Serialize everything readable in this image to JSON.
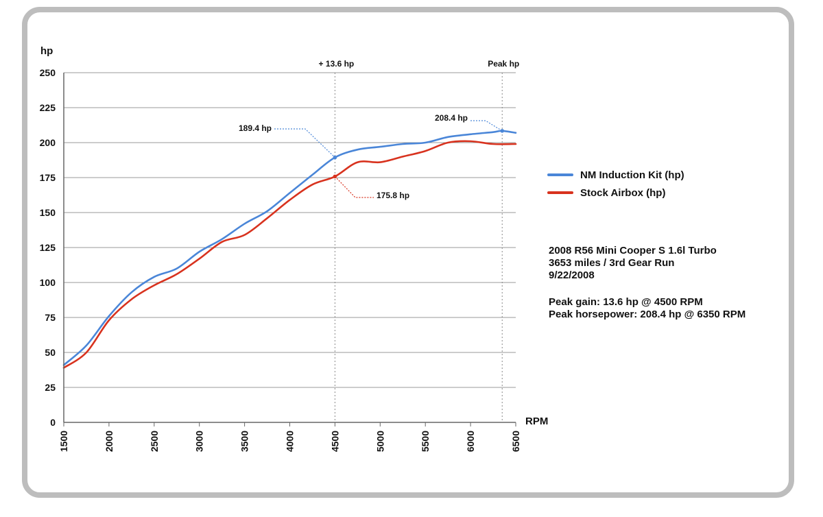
{
  "chart_data": {
    "type": "line",
    "ylabel": "hp",
    "xlabel": "RPM",
    "xlim": [
      1500,
      6500
    ],
    "ylim": [
      0,
      250
    ],
    "x_ticks": [
      1500,
      2000,
      2500,
      3000,
      3500,
      4000,
      4500,
      5000,
      5500,
      6000,
      6500
    ],
    "y_ticks": [
      0,
      25,
      50,
      75,
      100,
      125,
      150,
      175,
      200,
      225,
      250
    ],
    "grid": "horizontal",
    "legend_position": "right",
    "series": [
      {
        "name": "NM Induction Kit (hp)",
        "color": "#4a86d8",
        "x": [
          1500,
          1750,
          2000,
          2250,
          2500,
          2750,
          3000,
          3250,
          3500,
          3750,
          4000,
          4250,
          4500,
          4750,
          5000,
          5250,
          5500,
          5750,
          6000,
          6250,
          6350,
          6500
        ],
        "y": [
          41,
          55,
          76,
          93,
          104,
          110,
          122,
          131,
          142,
          151,
          164,
          177,
          189.4,
          195,
          197,
          199,
          200,
          204,
          206,
          207.5,
          208.4,
          207
        ]
      },
      {
        "name": "Stock Airbox (hp)",
        "color": "#d8321e",
        "x": [
          1500,
          1750,
          2000,
          2250,
          2500,
          2750,
          3000,
          3250,
          3500,
          3750,
          4000,
          4250,
          4500,
          4750,
          5000,
          5250,
          5500,
          5750,
          6000,
          6250,
          6500
        ],
        "y": [
          39,
          50,
          73,
          88,
          98,
          106,
          117,
          129,
          134,
          146,
          159,
          170,
          175.8,
          186,
          186,
          190,
          194,
          200,
          201,
          199,
          199
        ]
      }
    ],
    "annotations": [
      {
        "label": "+ 13.6 hp",
        "x": 4500
      },
      {
        "label": "Peak hp",
        "x": 6350
      }
    ],
    "point_labels": [
      {
        "label": "189.4 hp",
        "x": 4500,
        "y": 189.4,
        "series": 0
      },
      {
        "label": "175.8 hp",
        "x": 4500,
        "y": 175.8,
        "series": 1
      },
      {
        "label": "208.4 hp",
        "x": 6350,
        "y": 208.4,
        "series": 0
      }
    ]
  },
  "info": {
    "line1": "2008 R56 Mini Cooper S 1.6l Turbo",
    "line2": "3653 miles / 3rd Gear Run",
    "line3": "9/22/2008",
    "line4": "Peak gain: 13.6 hp @ 4500 RPM",
    "line5": "Peak horsepower: 208.4 hp @ 6350 RPM"
  }
}
